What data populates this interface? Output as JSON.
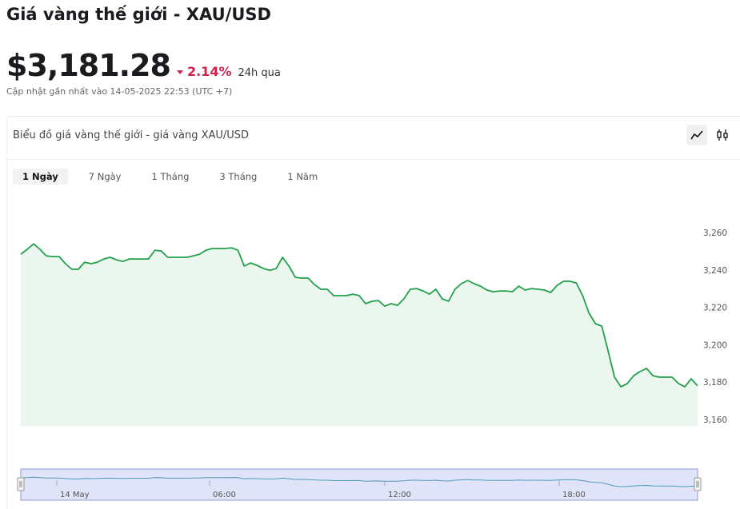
{
  "header": {
    "title": "Giá vàng thế giới - XAU/USD",
    "price": "$3,181.28",
    "change": "2.14%",
    "period": "24h qua",
    "updated": "Cập nhật gần nhất vào 14-05-2025 22:53 (UTC +7)"
  },
  "card": {
    "title": "Biểu đồ giá vàng thế giới - giá vàng XAU/USD",
    "tabs": [
      "1 Ngày",
      "7 Ngày",
      "1 Tháng",
      "3 Tháng",
      "1 Năm"
    ]
  },
  "chart_data": {
    "type": "line",
    "color": "#22a04b",
    "values": [
      3248.9,
      3251.5,
      3254.4,
      3251.5,
      3248.0,
      3247.6,
      3247.6,
      3243.8,
      3240.8,
      3240.8,
      3244.6,
      3243.8,
      3244.6,
      3246.3,
      3247.2,
      3245.9,
      3245.0,
      3246.3,
      3246.3,
      3246.3,
      3246.3,
      3251.0,
      3250.6,
      3247.2,
      3247.2,
      3247.2,
      3247.2,
      3248.0,
      3248.9,
      3251.0,
      3251.9,
      3251.9,
      3251.9,
      3252.3,
      3251.0,
      3242.5,
      3244.2,
      3242.9,
      3241.2,
      3240.3,
      3241.2,
      3247.2,
      3242.5,
      3236.5,
      3236.1,
      3236.1,
      3232.6,
      3230.1,
      3230.1,
      3226.7,
      3226.7,
      3226.7,
      3227.5,
      3226.7,
      3222.4,
      3223.7,
      3224.1,
      3221.1,
      3222.4,
      3221.5,
      3225.0,
      3230.1,
      3230.5,
      3229.2,
      3227.5,
      3230.1,
      3225.0,
      3223.7,
      3230.1,
      3233.1,
      3234.8,
      3233.1,
      3231.8,
      3229.7,
      3228.8,
      3229.2,
      3229.2,
      3228.8,
      3231.8,
      3229.7,
      3230.5,
      3230.1,
      3229.7,
      3228.4,
      3232.2,
      3234.4,
      3234.4,
      3233.5,
      3226.7,
      3217.3,
      3211.7,
      3210.4,
      3196.8,
      3183.1,
      3177.9,
      3179.7,
      3183.9,
      3186.1,
      3187.8,
      3183.9,
      3183.1,
      3183.1,
      3183.1,
      3179.7,
      3177.9,
      3182.2,
      3178.4
    ],
    "ylim": [
      3157,
      3278
    ],
    "yticks": [
      {
        "value": 3160,
        "label": "3,160"
      },
      {
        "value": 3180,
        "label": "3,180"
      },
      {
        "value": 3200,
        "label": "3,200"
      },
      {
        "value": 3220,
        "label": "3,220"
      },
      {
        "value": 3240,
        "label": "3,240"
      },
      {
        "value": 3260,
        "label": "3,260"
      }
    ],
    "navigator_labels": [
      "14 May",
      "06:00",
      "12:00",
      "18:00"
    ]
  }
}
